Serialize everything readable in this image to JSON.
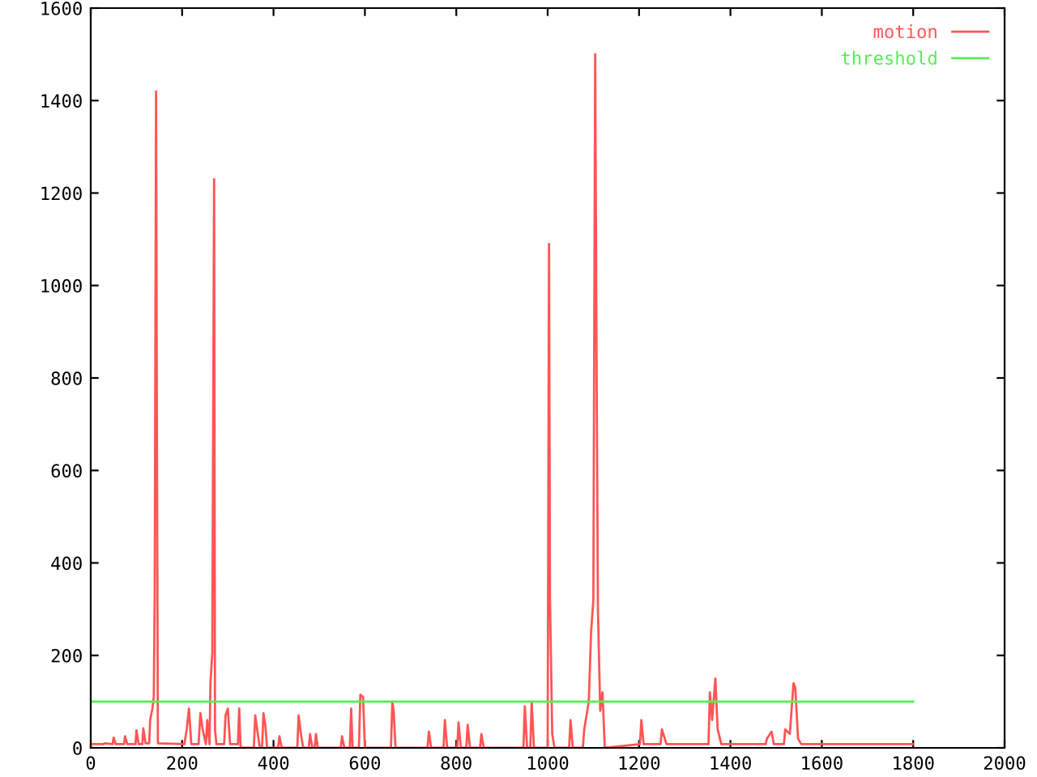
{
  "chart_data": {
    "type": "line",
    "series": [
      {
        "name": "motion",
        "color": "#ff5555",
        "x": [
          0,
          28,
          30,
          48,
          50,
          55,
          73,
          75,
          80,
          98,
          100,
          105,
          113,
          115,
          120,
          128,
          130,
          135,
          138,
          140,
          143,
          145,
          147,
          205,
          210,
          215,
          220,
          236,
          240,
          245,
          252,
          255,
          260,
          262,
          266,
          270,
          272,
          275,
          292,
          295,
          300,
          305,
          322,
          325,
          328,
          357,
          360,
          365,
          370,
          375,
          378,
          382,
          386,
          410,
          413,
          418,
          452,
          455,
          460,
          465,
          477,
          480,
          485,
          490,
          493,
          497,
          547,
          550,
          555,
          567,
          570,
          573,
          587,
          590,
          596,
          600,
          657,
          660,
          663,
          667,
          737,
          740,
          745,
          772,
          775,
          780,
          802,
          805,
          810,
          822,
          825,
          830,
          852,
          855,
          860,
          947,
          950,
          955,
          962,
          965,
          970,
          1000,
          1003,
          1005,
          1010,
          1015,
          1047,
          1050,
          1055,
          1077,
          1080,
          1090,
          1095,
          1100,
          1104,
          1107,
          1110,
          1115,
          1120,
          1125,
          1202,
          1205,
          1210,
          1247,
          1250,
          1260,
          1352,
          1355,
          1360,
          1367,
          1372,
          1380,
          1477,
          1480,
          1490,
          1495,
          1517,
          1520,
          1530,
          1538,
          1542,
          1548,
          1555,
          1800
        ],
        "values": [
          8,
          8,
          10,
          8,
          22,
          8,
          8,
          25,
          8,
          8,
          38,
          8,
          8,
          42,
          10,
          10,
          60,
          85,
          110,
          330,
          1420,
          630,
          10,
          8,
          40,
          85,
          8,
          8,
          75,
          40,
          8,
          60,
          8,
          140,
          205,
          1230,
          40,
          8,
          8,
          70,
          85,
          8,
          8,
          85,
          0,
          0,
          70,
          35,
          0,
          0,
          75,
          50,
          0,
          0,
          25,
          0,
          0,
          70,
          30,
          0,
          0,
          30,
          0,
          0,
          30,
          0,
          0,
          25,
          0,
          0,
          85,
          0,
          0,
          115,
          110,
          0,
          0,
          100,
          80,
          0,
          0,
          35,
          0,
          0,
          60,
          0,
          0,
          55,
          0,
          0,
          50,
          0,
          0,
          30,
          0,
          0,
          90,
          0,
          0,
          100,
          0,
          0,
          1090,
          325,
          30,
          0,
          0,
          60,
          0,
          0,
          40,
          100,
          250,
          320,
          1500,
          850,
          300,
          80,
          120,
          0,
          8,
          60,
          8,
          8,
          40,
          8,
          8,
          120,
          60,
          150,
          40,
          8,
          8,
          20,
          35,
          8,
          8,
          40,
          30,
          140,
          130,
          20,
          8,
          8
        ]
      },
      {
        "name": "threshold",
        "color": "#55ee55",
        "x": [
          0,
          1800
        ],
        "values": [
          100,
          100
        ]
      }
    ],
    "xlim": [
      0,
      2000
    ],
    "xticks": [
      0,
      200,
      400,
      600,
      800,
      1000,
      1200,
      1400,
      1600,
      1800,
      2000
    ],
    "ylim": [
      0,
      1600
    ],
    "yticks": [
      0,
      200,
      400,
      600,
      800,
      1000,
      1200,
      1400,
      1600
    ],
    "grid": false,
    "legend": "top right"
  }
}
